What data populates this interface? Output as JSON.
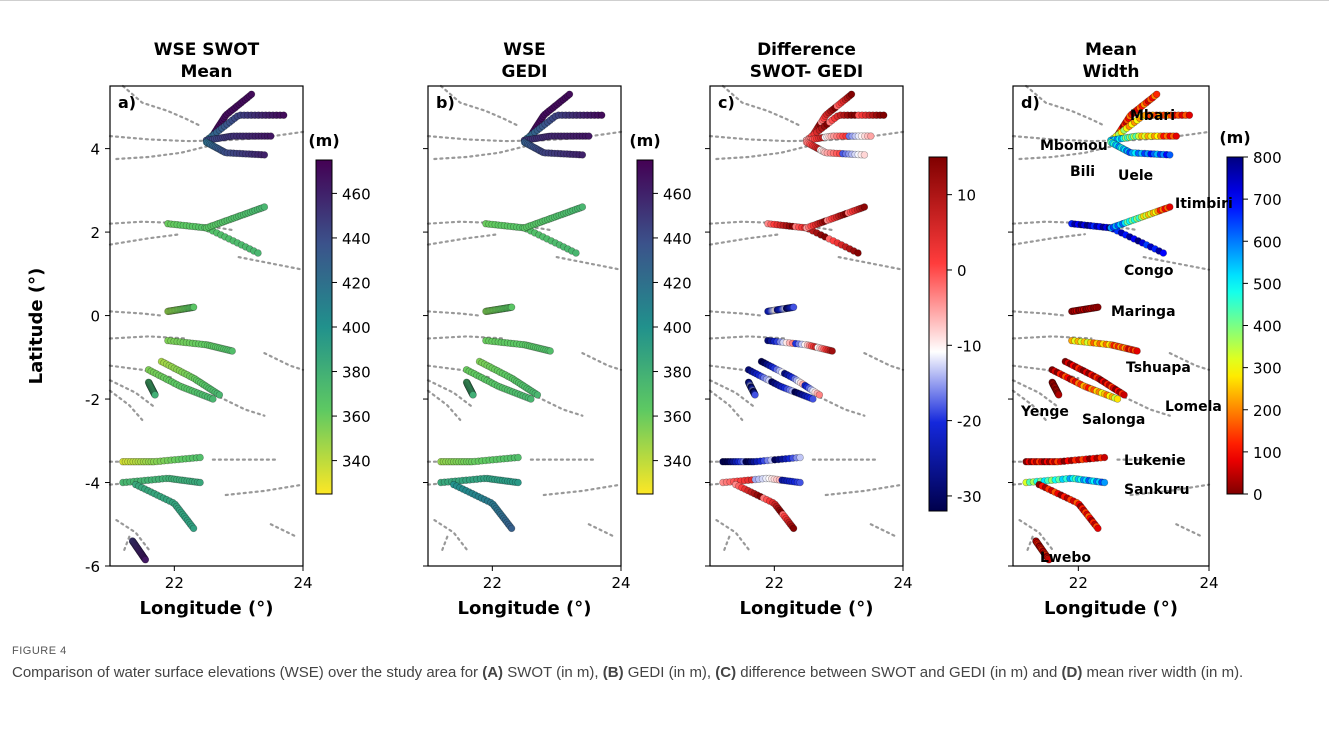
{
  "panels": [
    {
      "title_1": "WSE SWOT",
      "title_2": "Mean",
      "letter": "a)",
      "mode": "wse_swot",
      "cbar_unit": "(m)",
      "cbar_ticks": [
        "460",
        "440",
        "420",
        "400",
        "380",
        "360",
        "340"
      ],
      "cbar_colormap": "viridis-reversed"
    },
    {
      "title_1": "WSE",
      "title_2": "GEDI",
      "letter": "b)",
      "mode": "wse_gedi",
      "cbar_unit": "(m)",
      "cbar_ticks": [
        "460",
        "440",
        "420",
        "400",
        "380",
        "360",
        "340"
      ],
      "cbar_colormap": "viridis-reversed"
    },
    {
      "title_1": "Difference",
      "title_2": "SWOT- GEDI",
      "letter": "c)",
      "mode": "diff",
      "cbar_unit": "",
      "cbar_ticks": [
        "10",
        "0",
        "-10",
        "-20",
        "-30"
      ],
      "cbar_colormap": "seismic"
    },
    {
      "title_1": "Mean",
      "title_2": "Width",
      "letter": "d)",
      "mode": "width",
      "cbar_unit": "(m)",
      "cbar_ticks": [
        "800",
        "700",
        "600",
        "500",
        "400",
        "300",
        "200",
        "100",
        "0"
      ],
      "cbar_colormap": "jet-reversed"
    }
  ],
  "axes": {
    "ylabel": "Latitude (°)",
    "xlabel": "Longitude (°)",
    "y_ticks": [
      "4",
      "2",
      "0",
      "-2",
      "-4",
      "-6"
    ],
    "x_ticks": [
      "22",
      "24"
    ],
    "xlim": [
      21,
      24
    ],
    "ylim": [
      -6,
      5.5
    ]
  },
  "river_labels": [
    "Mbari",
    "Mbomou",
    "Bili",
    "Uele",
    "Itimbiri",
    "Congo",
    "Maringa",
    "Tshuapa",
    "Lomela",
    "Yenge",
    "Salonga",
    "Lukenie",
    "Sankuru",
    "Lwebo"
  ],
  "caption": {
    "label": "FIGURE 4",
    "text_1": "Comparison of water surface elevations (WSE) over the study area for ",
    "a": "(A)",
    "text_2": " SWOT (in m), ",
    "b": "(B)",
    "text_3": " GEDI (in m), ",
    "c": "(C)",
    "text_4": " difference between SWOT and GEDI (in m) and ",
    "d": "(D)",
    "text_5": " mean river width (in m)."
  },
  "chart_data": [
    {
      "type": "scatter",
      "title": "WSE SWOT Mean",
      "xlabel": "Longitude (°)",
      "ylabel": "Latitude (°)",
      "xlim": [
        21,
        24
      ],
      "ylim": [
        -6,
        5.5
      ],
      "colorbar": {
        "unit": "(m)",
        "range": [
          325,
          475
        ]
      }
    },
    {
      "type": "scatter",
      "title": "WSE GEDI",
      "xlabel": "Longitude (°)",
      "xlim": [
        21,
        24
      ],
      "ylim": [
        -6,
        5.5
      ],
      "colorbar": {
        "unit": "(m)",
        "range": [
          325,
          475
        ]
      }
    },
    {
      "type": "scatter",
      "title": "Difference SWOT- GEDI",
      "xlabel": "Longitude (°)",
      "xlim": [
        21,
        24
      ],
      "ylim": [
        -6,
        5.5
      ],
      "colorbar": {
        "range": [
          -32,
          15
        ]
      }
    },
    {
      "type": "scatter",
      "title": "Mean Width",
      "xlabel": "Longitude (°)",
      "xlim": [
        21,
        24
      ],
      "ylim": [
        -6,
        5.5
      ],
      "colorbar": {
        "unit": "(m)",
        "range": [
          0,
          800
        ]
      }
    }
  ]
}
